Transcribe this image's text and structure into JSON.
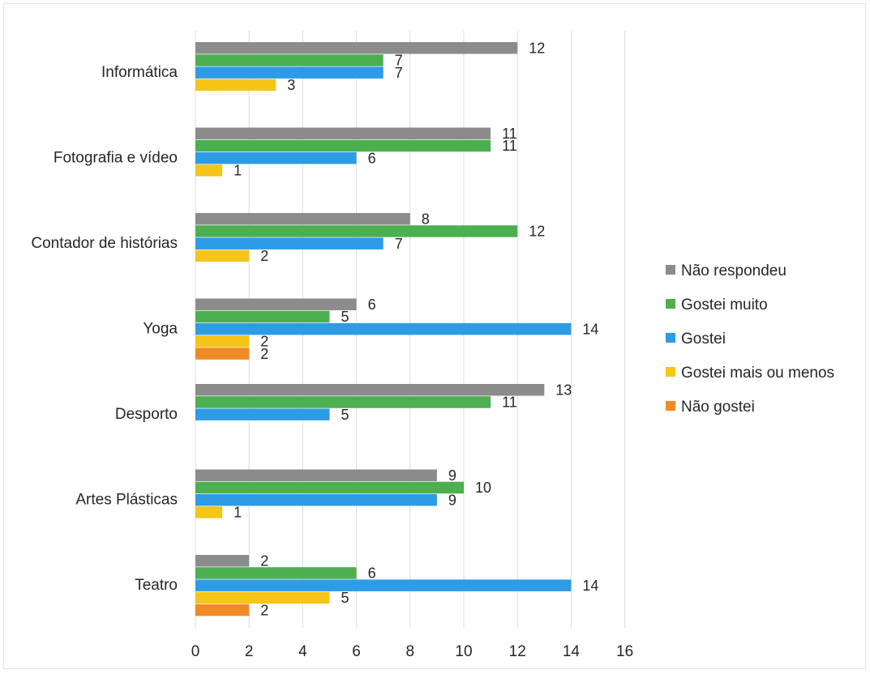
{
  "chart_data": {
    "type": "bar",
    "orientation": "horizontal",
    "title": "",
    "xlabel": "",
    "ylabel": "",
    "xlim": [
      0,
      16
    ],
    "x_ticks": [
      0,
      2,
      4,
      6,
      8,
      10,
      12,
      14,
      16
    ],
    "grid": "vertical",
    "legend_position": "right",
    "categories": [
      "Informática",
      "Fotografia e vídeo",
      "Contador de histórias",
      "Yoga",
      "Desporto",
      "Artes Plásticas",
      "Teatro"
    ],
    "series": [
      {
        "name": "Não respondeu",
        "color": "#8c8c8c",
        "values": [
          12,
          11,
          8,
          6,
          13,
          9,
          2
        ]
      },
      {
        "name": "Gostei muito",
        "color": "#4caf50",
        "values": [
          7,
          11,
          12,
          5,
          11,
          10,
          6
        ]
      },
      {
        "name": "Gostei",
        "color": "#2e9be6",
        "values": [
          7,
          6,
          7,
          14,
          5,
          9,
          14
        ]
      },
      {
        "name": "Gostei mais ou menos",
        "color": "#f5c518",
        "values": [
          3,
          1,
          2,
          2,
          null,
          1,
          5
        ]
      },
      {
        "name": "Não gostei",
        "color": "#f08a24",
        "values": [
          null,
          null,
          null,
          2,
          null,
          null,
          2
        ]
      }
    ]
  }
}
